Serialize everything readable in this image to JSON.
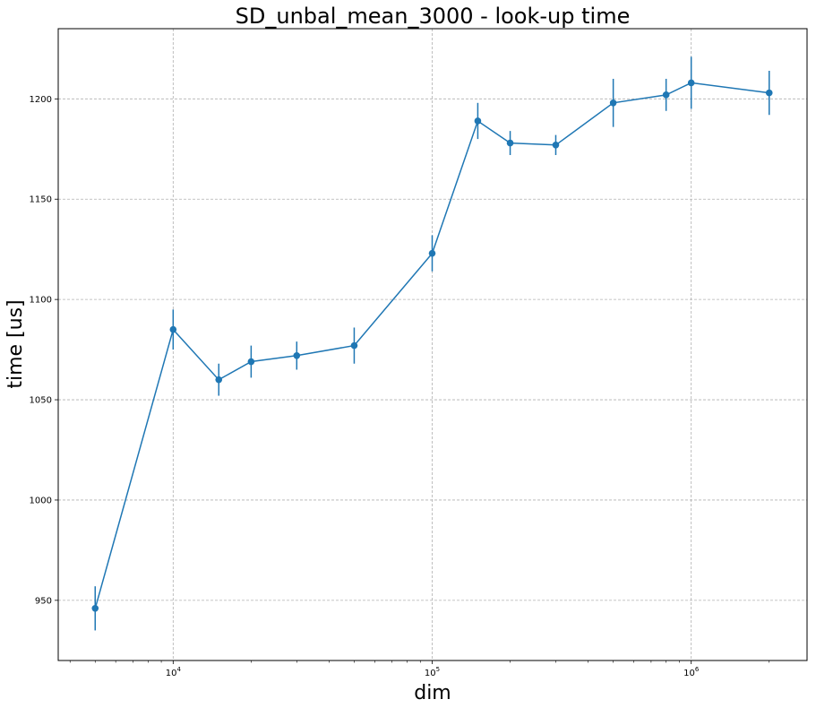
{
  "chart_data": {
    "type": "line",
    "title": "SD_unbal_mean_3000 - look-up time",
    "xlabel": "dim",
    "ylabel": "time [us]",
    "xscale": "log",
    "xlim": [
      3600,
      2800000
    ],
    "ylim": [
      920,
      1235
    ],
    "grid": true,
    "color": "#1f77b4",
    "xticks": [
      {
        "value": 10000,
        "base": "10",
        "exp": "4"
      },
      {
        "value": 100000,
        "base": "10",
        "exp": "5"
      },
      {
        "value": 1000000,
        "base": "10",
        "exp": "6"
      }
    ],
    "yticks": [
      950,
      1000,
      1050,
      1100,
      1150,
      1200
    ],
    "x": [
      5000,
      10000,
      15000,
      20000,
      30000,
      50000,
      100000,
      150000,
      200000,
      300000,
      500000,
      800000,
      1000000,
      2000000
    ],
    "series": [
      {
        "values": [
          946,
          1085,
          1060,
          1069,
          1072,
          1077,
          1123,
          1189,
          1178,
          1177,
          1198,
          1202,
          1208,
          1203
        ],
        "errors": [
          11,
          10,
          8,
          8,
          7,
          9,
          9,
          9,
          6,
          5,
          12,
          8,
          13,
          11
        ]
      }
    ]
  }
}
